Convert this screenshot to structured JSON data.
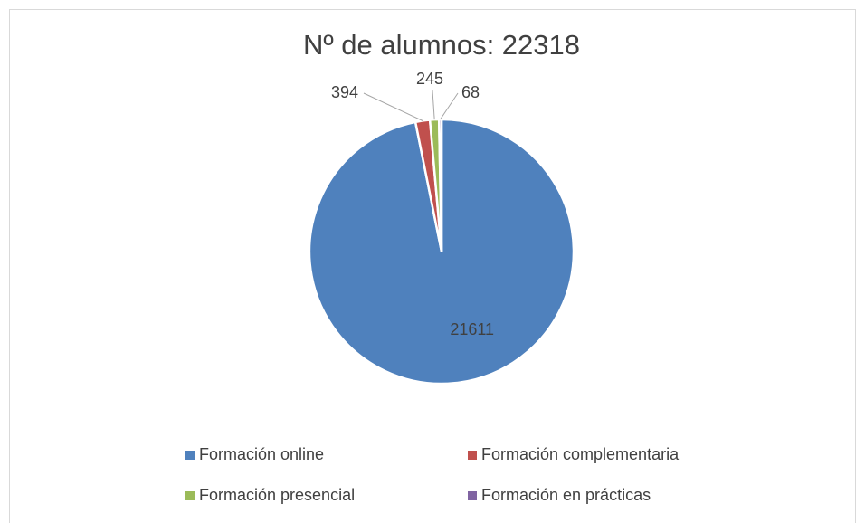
{
  "chart_data": {
    "type": "pie",
    "title": "Nº de alumnos: 22318",
    "categories": [
      "Formación online",
      "Formación complementaria",
      "Formación presencial",
      "Formación en prácticas"
    ],
    "values": [
      21611,
      394,
      245,
      68
    ],
    "colors": [
      "#4f81bd",
      "#c0504d",
      "#9bbb59",
      "#8064a2"
    ],
    "legend": "bottom"
  }
}
